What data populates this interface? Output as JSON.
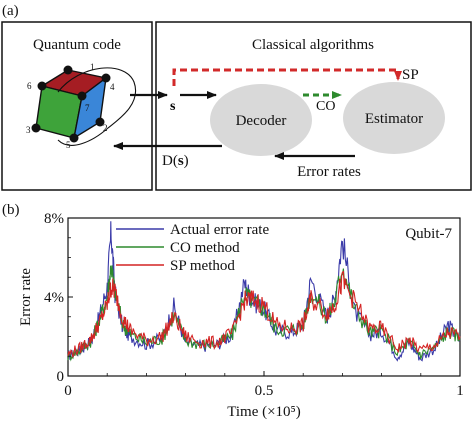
{
  "panel_a": {
    "label": "(a)",
    "quantum_code_title": "Quantum code",
    "classical_title": "Classical algorithms",
    "decoder_label": "Decoder",
    "estimator_label": "Estimator",
    "sp_label": "SP",
    "co_label": "CO",
    "s_label": "s",
    "ds_label_prefix": "D(",
    "ds_label_bold": "s",
    "ds_label_suffix": ")",
    "error_rates_label": "Error rates",
    "cube_numbers": [
      "1",
      "2",
      "3",
      "4",
      "5",
      "6",
      "7"
    ],
    "colors": {
      "red": "#a51d23",
      "green": "#3ea33a",
      "blue": "#3a86d8",
      "sp_arrow": "#d22a2a",
      "co_arrow": "#2d8a2d",
      "ellipse": "#d9d9d9"
    }
  },
  "panel_b": {
    "label": "(b)",
    "annotation": "Qubit-7",
    "chart_data": {
      "type": "line",
      "title": "",
      "xlabel": "Time (×10⁵)",
      "ylabel": "Error rate",
      "xlim": [
        0,
        1
      ],
      "ylim": [
        0,
        8
      ],
      "x_ticks": [
        "0",
        "0.5",
        "1"
      ],
      "y_ticks": [
        "0",
        "4%",
        "8%"
      ],
      "legend_placement": "top-left",
      "series": [
        {
          "name": "Actual error rate",
          "color": "#3a3aa8",
          "x": [
            0,
            0.03,
            0.06,
            0.08,
            0.1,
            0.11,
            0.12,
            0.14,
            0.16,
            0.2,
            0.24,
            0.27,
            0.3,
            0.34,
            0.38,
            0.42,
            0.45,
            0.47,
            0.5,
            0.53,
            0.57,
            0.6,
            0.62,
            0.66,
            0.68,
            0.7,
            0.73,
            0.77,
            0.8,
            0.84,
            0.87,
            0.9,
            0.94,
            0.97,
            1.0
          ],
          "y": [
            1.0,
            1.3,
            1.8,
            3.0,
            4.5,
            7.3,
            4.2,
            2.4,
            2.0,
            1.6,
            1.9,
            3.5,
            1.7,
            1.5,
            1.6,
            2.1,
            4.7,
            3.8,
            3.4,
            2.3,
            2.2,
            2.6,
            4.9,
            3.0,
            3.9,
            6.9,
            3.3,
            2.1,
            2.3,
            1.0,
            1.7,
            0.9,
            1.5,
            2.6,
            1.8
          ]
        },
        {
          "name": "CO method",
          "color": "#2d8a2d",
          "x": [
            0,
            0.03,
            0.06,
            0.08,
            0.1,
            0.11,
            0.12,
            0.14,
            0.16,
            0.2,
            0.24,
            0.27,
            0.3,
            0.34,
            0.38,
            0.42,
            0.45,
            0.47,
            0.5,
            0.53,
            0.57,
            0.6,
            0.62,
            0.66,
            0.68,
            0.7,
            0.73,
            0.77,
            0.8,
            0.84,
            0.87,
            0.9,
            0.94,
            0.97,
            1.0
          ],
          "y": [
            1.0,
            1.3,
            1.8,
            2.8,
            4.0,
            5.6,
            4.2,
            2.6,
            2.1,
            1.7,
            1.9,
            3.1,
            1.8,
            1.6,
            1.6,
            2.1,
            4.2,
            3.8,
            3.4,
            2.4,
            2.3,
            2.6,
            4.3,
            3.0,
            3.7,
            5.6,
            3.5,
            2.2,
            2.3,
            1.2,
            1.7,
            1.1,
            1.5,
            2.3,
            1.9
          ]
        },
        {
          "name": "SP method",
          "color": "#d42424",
          "x": [
            0,
            0.03,
            0.06,
            0.08,
            0.1,
            0.11,
            0.12,
            0.14,
            0.16,
            0.2,
            0.24,
            0.27,
            0.3,
            0.34,
            0.38,
            0.42,
            0.45,
            0.47,
            0.5,
            0.53,
            0.57,
            0.6,
            0.62,
            0.66,
            0.68,
            0.7,
            0.73,
            0.77,
            0.8,
            0.84,
            0.87,
            0.9,
            0.94,
            0.97,
            1.0
          ],
          "y": [
            1.1,
            1.4,
            1.9,
            2.7,
            3.6,
            4.5,
            4.3,
            2.9,
            2.3,
            1.8,
            2.0,
            3.0,
            2.0,
            1.7,
            1.7,
            2.2,
            3.8,
            3.9,
            3.6,
            2.6,
            2.4,
            2.6,
            3.9,
            3.2,
            3.6,
            4.8,
            3.8,
            2.4,
            2.4,
            1.4,
            1.8,
            1.3,
            1.6,
            2.2,
            2.0
          ]
        }
      ]
    }
  }
}
